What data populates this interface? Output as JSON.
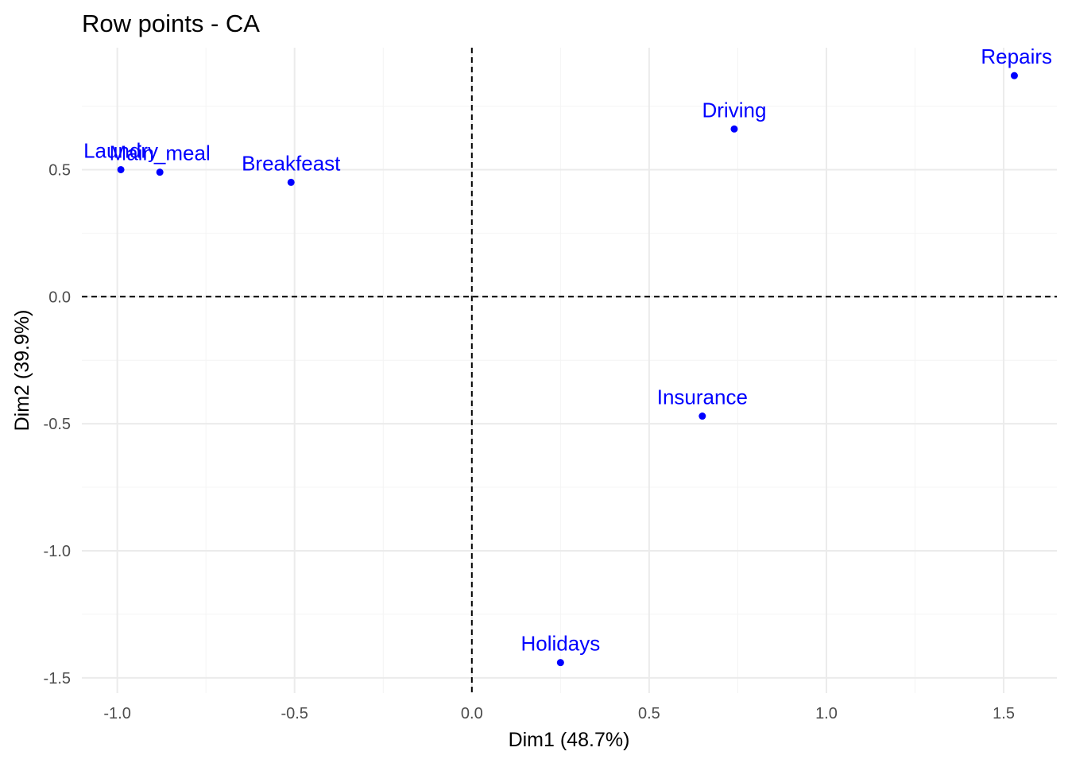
{
  "chart_data": {
    "type": "scatter",
    "title": "Row points - CA",
    "xlabel": "Dim1 (48.7%)",
    "ylabel": "Dim2 (39.9%)",
    "xlim": [
      -1.1,
      1.65
    ],
    "ylim": [
      -1.56,
      0.98
    ],
    "x_ticks": [
      -1.0,
      -0.5,
      0.0,
      0.5,
      1.0,
      1.5
    ],
    "x_tick_labels": [
      "-1.0",
      "-0.5",
      "0.0",
      "0.5",
      "1.0",
      "1.5"
    ],
    "y_ticks": [
      -1.5,
      -1.0,
      -0.5,
      0.0,
      0.5
    ],
    "y_tick_labels": [
      "-1.5",
      "-1.0",
      "-0.5",
      "0.0",
      "0.5"
    ],
    "grid": true,
    "reference_lines": {
      "x": 0,
      "y": 0,
      "style": "dashed"
    },
    "point_color": "#0000FF",
    "points": [
      {
        "label": "Laundry",
        "x": -0.99,
        "y": 0.5
      },
      {
        "label": "Main_meal",
        "x": -0.88,
        "y": 0.49
      },
      {
        "label": "Breakfeast",
        "x": -0.51,
        "y": 0.45
      },
      {
        "label": "Driving",
        "x": 0.74,
        "y": 0.66
      },
      {
        "label": "Repairs",
        "x": 1.53,
        "y": 0.87
      },
      {
        "label": "Insurance",
        "x": 0.65,
        "y": -0.47
      },
      {
        "label": "Holidays",
        "x": 0.25,
        "y": -1.44
      }
    ]
  }
}
